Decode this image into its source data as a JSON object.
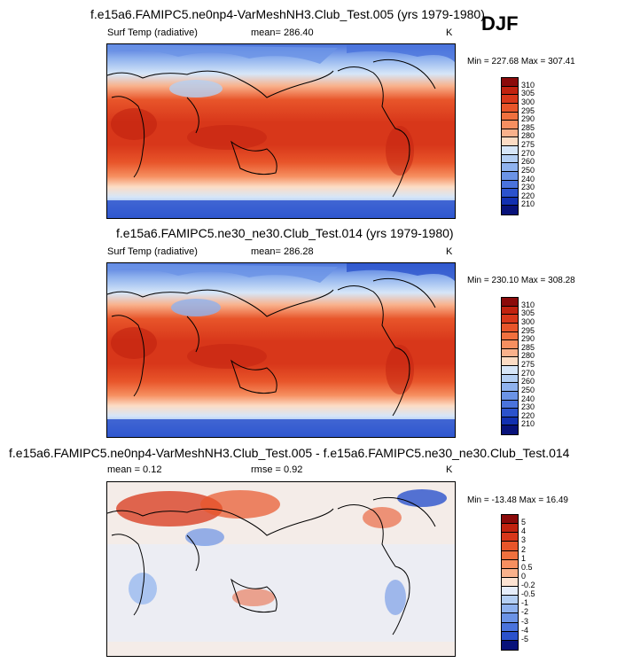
{
  "season_label": "DJF",
  "panel_titles": [
    "f.e15a6.FAMIPC5.ne0np4-VarMeshNH3.Club_Test.005 (yrs 1979-1980)",
    "f.e15a6.FAMIPC5.ne30_ne30.Club_Test.014 (yrs 1979-1980)",
    "f.e15a6.FAMIPC5.ne0np4-VarMeshNH3.Club_Test.005 - f.e15a6.FAMIPC5.ne30_ne30.Club_Test.014"
  ],
  "chart_data": [
    {
      "type": "heatmap",
      "title": "f.e15a6.FAMIPC5.ne0np4-VarMeshNH3.Club_Test.005 (yrs 1979-1980)",
      "variable_label": "Surf Temp (radiative)",
      "mean_text": "mean= 286.40",
      "units": "K",
      "minmax_text": "Min = 227.68 Max = 307.41",
      "colorbar_levels": [
        "310",
        "305",
        "300",
        "295",
        "290",
        "285",
        "280",
        "275",
        "270",
        "260",
        "250",
        "240",
        "230",
        "220",
        "210"
      ],
      "colorbar_colors": [
        "#8b0a0a",
        "#c1220f",
        "#d8371a",
        "#e8552a",
        "#f0703e",
        "#f68f60",
        "#f9b18b",
        "#fcdcc4",
        "#d6e6f8",
        "#b4cff3",
        "#8fb2ee",
        "#6b93e6",
        "#4a73dc",
        "#2b52cc",
        "#1230b0",
        "#08127a"
      ]
    },
    {
      "type": "heatmap",
      "title": "f.e15a6.FAMIPC5.ne30_ne30.Club_Test.014 (yrs 1979-1980)",
      "variable_label": "Surf Temp (radiative)",
      "mean_text": "mean= 286.28",
      "units": "K",
      "minmax_text": "Min = 230.10 Max = 308.28",
      "colorbar_levels": [
        "310",
        "305",
        "300",
        "295",
        "290",
        "285",
        "280",
        "275",
        "270",
        "260",
        "250",
        "240",
        "230",
        "220",
        "210"
      ],
      "colorbar_colors": [
        "#8b0a0a",
        "#c1220f",
        "#d8371a",
        "#e8552a",
        "#f0703e",
        "#f68f60",
        "#f9b18b",
        "#fcdcc4",
        "#d6e6f8",
        "#b4cff3",
        "#8fb2ee",
        "#6b93e6",
        "#4a73dc",
        "#2b52cc",
        "#1230b0",
        "#08127a"
      ]
    },
    {
      "type": "heatmap",
      "title": "f.e15a6.FAMIPC5.ne0np4-VarMeshNH3.Club_Test.005 - f.e15a6.FAMIPC5.ne30_ne30.Club_Test.014",
      "mean_text": "mean =  0.12",
      "rmse_text": "rmse =  0.92",
      "units": "K",
      "minmax_text": "Min = -13.48 Max =  16.49",
      "colorbar_levels": [
        "5",
        "4",
        "3",
        "2",
        "1",
        "0.5",
        "0",
        "-0.2",
        "-0.5",
        "-1",
        "-2",
        "-3",
        "-4",
        "-5"
      ],
      "colorbar_colors": [
        "#8b0a0a",
        "#c1220f",
        "#d8371a",
        "#e8552a",
        "#f0703e",
        "#f68f60",
        "#f9b18b",
        "#fde3d2",
        "#e6eefb",
        "#b4cff3",
        "#8fb2ee",
        "#6b93e6",
        "#4a73dc",
        "#2b52cc",
        "#08127a"
      ]
    }
  ]
}
